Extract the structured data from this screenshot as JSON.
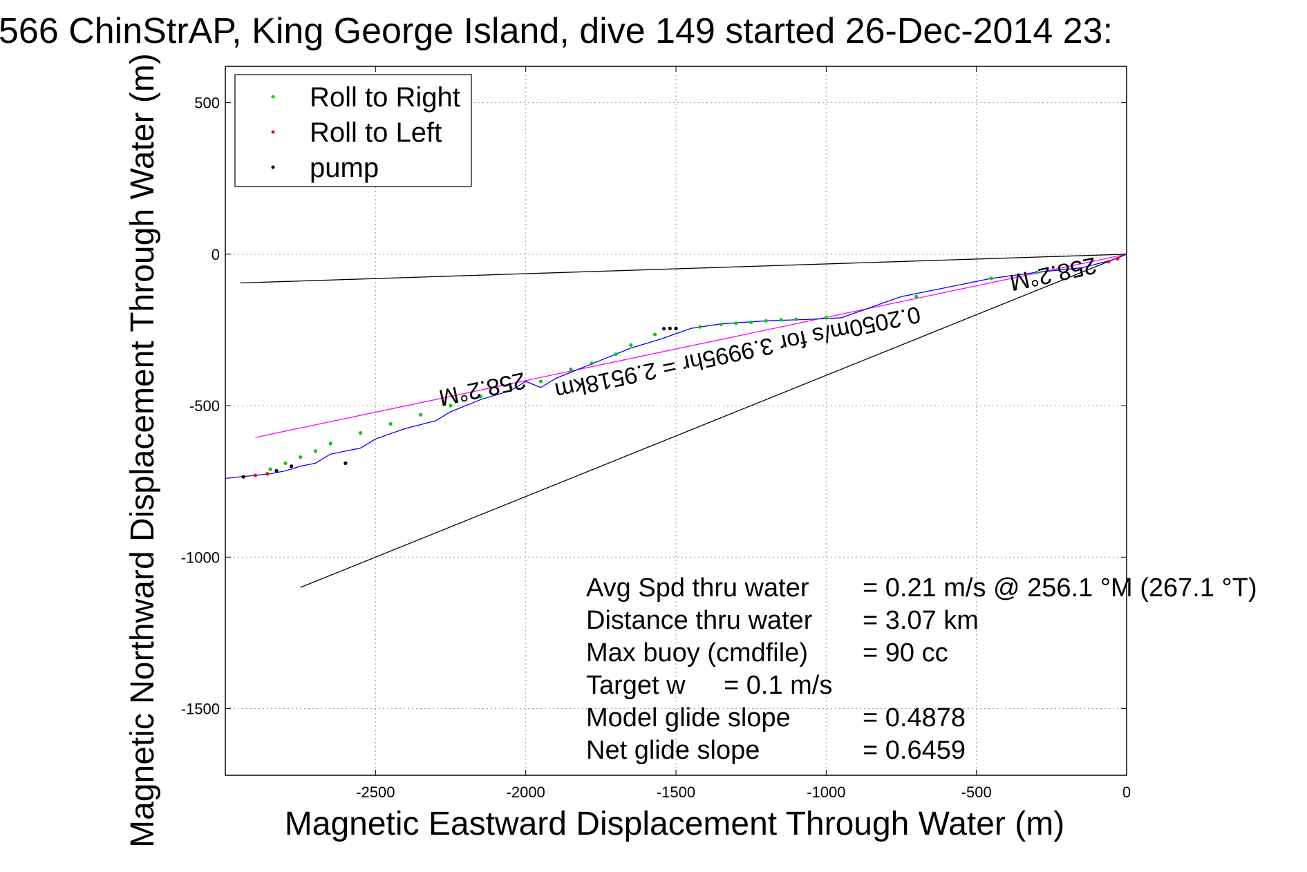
{
  "title": "566 ChinStrAP, King George Island, dive 149 started 26-Dec-2014 23:",
  "chart_data": {
    "type": "line",
    "title": "566 ChinStrAP, King George Island, dive 149 started 26-Dec-2014 23:",
    "xlabel": "Magnetic Eastward Displacement Through Water (m)",
    "ylabel": "Magnetic Northward Displacement Through Water (m)",
    "xlim": [
      -3000,
      0
    ],
    "ylim": [
      -1720,
      620
    ],
    "xticks": [
      -2500,
      -2000,
      -1500,
      -1000,
      -500,
      0
    ],
    "yticks": [
      500,
      0,
      -500,
      -1000,
      -1500
    ],
    "grid": true,
    "legend_position": "top-left",
    "legend": [
      {
        "label": "Roll to Right",
        "color": "#00cc00"
      },
      {
        "label": "Roll to Left",
        "color": "#ff0000"
      },
      {
        "label": "pump",
        "color": "#000000"
      }
    ],
    "track": {
      "name": "glider track",
      "color": "#0000ff",
      "x": [
        0,
        -50,
        -150,
        -300,
        -450,
        -600,
        -750,
        -850,
        -950,
        -1050,
        -1200,
        -1350,
        -1450,
        -1550,
        -1650,
        -1700,
        -1750,
        -1800,
        -1850,
        -1900,
        -1950,
        -2000,
        -2050,
        -2150,
        -2250,
        -2300,
        -2400,
        -2500,
        -2550,
        -2650,
        -2700,
        -2750,
        -2800,
        -2850,
        -2900,
        -2950,
        -3000
      ],
      "y": [
        0,
        -20,
        -45,
        -60,
        -80,
        -110,
        -140,
        -175,
        -210,
        -215,
        -220,
        -230,
        -245,
        -280,
        -310,
        -330,
        -350,
        -370,
        -390,
        -410,
        -440,
        -420,
        -450,
        -480,
        -520,
        -550,
        -575,
        -610,
        -640,
        -660,
        -690,
        -700,
        -715,
        -725,
        -730,
        -735,
        -740
      ]
    },
    "roll_right_points": {
      "x": [
        -300,
        -450,
        -700,
        -1000,
        -1100,
        -1150,
        -1200,
        -1250,
        -1300,
        -1350,
        -1420,
        -1500,
        -1570,
        -1650,
        -1700,
        -1780,
        -1850,
        -1950,
        -2050,
        -2150,
        -2250,
        -2350,
        -2450,
        -2550,
        -2650,
        -2700,
        -2750,
        -2800,
        -2850
      ],
      "y": [
        -60,
        -80,
        -140,
        -210,
        -215,
        -217,
        -220,
        -225,
        -228,
        -232,
        -240,
        -246,
        -265,
        -300,
        -330,
        -360,
        -380,
        -420,
        -440,
        -470,
        -500,
        -530,
        -560,
        -590,
        -625,
        -650,
        -670,
        -690,
        -710
      ]
    },
    "roll_left_points": {
      "x": [
        -30,
        -60,
        -2860,
        -2900
      ],
      "y": [
        -15,
        -25,
        -725,
        -730
      ]
    },
    "pump_points": {
      "x": [
        -1500,
        -1520,
        -1540,
        -2600,
        -2780,
        -2830,
        -2940
      ],
      "y": [
        -245,
        -245,
        -246,
        -690,
        -700,
        -715,
        -735
      ]
    },
    "reference_lines": [
      {
        "name": "black-line-upper",
        "x": [
          0,
          -2950
        ],
        "y": [
          0,
          -95
        ],
        "color": "#000000"
      },
      {
        "name": "black-line-lower",
        "x": [
          0,
          -2750
        ],
        "y": [
          0,
          -1100
        ],
        "color": "#000000"
      },
      {
        "name": "magenta-line",
        "x": [
          0,
          -2900
        ],
        "y": [
          0,
          -605
        ],
        "color": "#ff00ff"
      }
    ],
    "annotations": [
      {
        "text": "258.2°M",
        "x": -2150,
        "y": -420,
        "rotation": 168
      },
      {
        "text": "258.2°M",
        "x": -250,
        "y": -40,
        "rotation": 168
      },
      {
        "text": "0.2050m/s for 3.9995hr = 2.9518km",
        "x": -1300,
        "y": -300,
        "rotation": 168
      }
    ]
  },
  "stats": [
    {
      "label": "Avg Spd thru water",
      "value": "=  0.21 m/s @ 256.1 °M (267.1 °T)"
    },
    {
      "label": "Distance thru water",
      "value": "=  3.07 km"
    },
    {
      "label": "Max buoy (cmdfile)",
      "value": "= 90 cc"
    },
    {
      "label": "Target w",
      "value": "= 0.1 m/s"
    },
    {
      "label": "Model glide slope",
      "value": "= 0.4878"
    },
    {
      "label": "Net glide slope",
      "value": "= 0.6459"
    }
  ]
}
